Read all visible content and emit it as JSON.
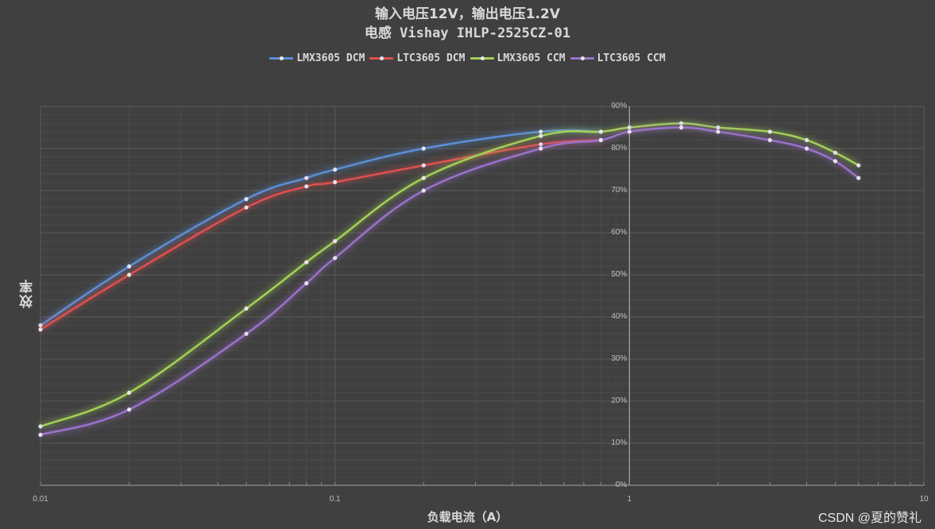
{
  "chart_data": {
    "type": "line",
    "title": "输入电压12V，输出电压1.2V",
    "subtitle": "电感 Vishay IHLP-2525CZ-01",
    "xlabel": "负载电流（A）",
    "ylabel": "效率",
    "xscale": "log",
    "xlim": [
      0.01,
      10
    ],
    "ylim": [
      0,
      90
    ],
    "x_tick_labels": [
      "0.01",
      "0.1",
      "1",
      "10"
    ],
    "y_tick_labels": [
      "0%",
      "10%",
      "20%",
      "30%",
      "40%",
      "50%",
      "60%",
      "70%",
      "80%",
      "90%"
    ],
    "y_axis_position": "crosses at x=1",
    "grid": true,
    "legend_position": "top",
    "series": [
      {
        "name": "LMX3605 DCM",
        "color": "#5b8fd8",
        "x": [
          0.01,
          0.02,
          0.05,
          0.08,
          0.1,
          0.2,
          0.5,
          0.8
        ],
        "values": [
          38,
          52,
          68,
          73,
          75,
          80,
          84,
          84
        ]
      },
      {
        "name": "LTC3605 DCM",
        "color": "#e0504f",
        "x": [
          0.01,
          0.02,
          0.05,
          0.08,
          0.1,
          0.2,
          0.5,
          0.8
        ],
        "values": [
          37,
          50,
          66,
          71,
          72,
          76,
          81,
          82
        ]
      },
      {
        "name": "LMX3605 CCM",
        "color": "#a3d057",
        "x": [
          0.01,
          0.02,
          0.05,
          0.08,
          0.1,
          0.2,
          0.5,
          0.8,
          1,
          1.5,
          2,
          3,
          4,
          5,
          6
        ],
        "values": [
          14,
          22,
          42,
          53,
          58,
          73,
          83,
          84,
          85,
          86,
          85,
          84,
          82,
          79,
          76
        ]
      },
      {
        "name": "LTC3605 CCM",
        "color": "#9a72c9",
        "x": [
          0.01,
          0.02,
          0.05,
          0.08,
          0.1,
          0.2,
          0.5,
          0.8,
          1,
          1.5,
          2,
          3,
          4,
          5,
          6
        ],
        "values": [
          12,
          18,
          36,
          48,
          54,
          70,
          80,
          82,
          84,
          85,
          84,
          82,
          80,
          77,
          73
        ]
      }
    ]
  },
  "legend": [
    {
      "label": "LMX3605 DCM",
      "color": "#5b8fd8"
    },
    {
      "label": "LTC3605 DCM",
      "color": "#e0504f"
    },
    {
      "label": "LMX3605 CCM",
      "color": "#a3d057"
    },
    {
      "label": "LTC3605 CCM",
      "color": "#9a72c9"
    }
  ],
  "watermark": "CSDN @夏的赞礼",
  "colors": {
    "background": "#404040",
    "grid_major": "#5a5a5a",
    "grid_minor": "#4a4a4a",
    "axis": "#8c8c8c",
    "text": "#d9d9d9"
  }
}
